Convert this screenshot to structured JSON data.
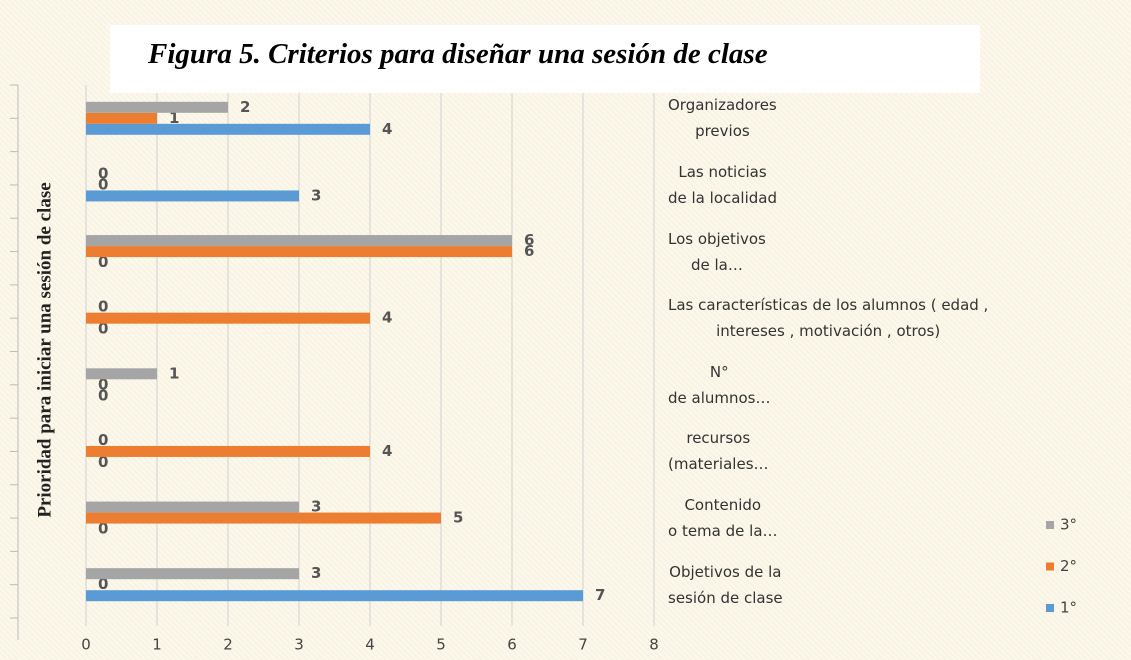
{
  "chart_data": {
    "type": "hbar",
    "title": "Figura 5. Criterios para diseñar una sesión de clase",
    "y_label": "Prioridad   para iniciar una sesión de clase",
    "categories": [
      "Organizadores\nprevios",
      "Las noticias\nde la localidad",
      "Los objetivos\nde la…",
      "Las características de los alumnos ( edad ,\nintereses , motivación , otros)",
      "N°\nde alumnos…",
      "recursos\n(materiales…",
      "Contenido\no tema de la…",
      "Objetivos de la\nsesión de clase"
    ],
    "series": [
      {
        "name": "1°",
        "color": "#5b9bd5",
        "values": [
          4,
          3,
          0,
          0,
          0,
          0,
          0,
          7
        ]
      },
      {
        "name": "2°",
        "color": "#ed7d31",
        "values": [
          1,
          0,
          6,
          4,
          0,
          4,
          5,
          0
        ]
      },
      {
        "name": "3°",
        "color": "#a5a5a5",
        "values": [
          2,
          0,
          6,
          0,
          1,
          0,
          3,
          3
        ]
      }
    ],
    "xlim": [
      0,
      8
    ],
    "xticks": [
      0,
      1,
      2,
      3,
      4,
      5,
      6,
      7,
      8
    ],
    "grid": true
  }
}
